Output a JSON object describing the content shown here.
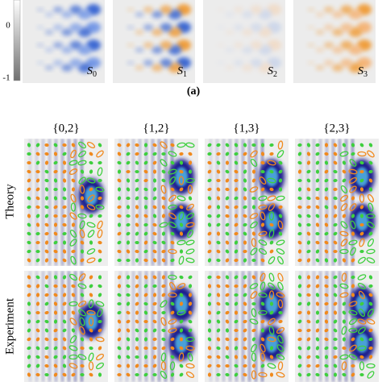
{
  "colorbar": {
    "ticks": [
      "0",
      "-1"
    ]
  },
  "stokes_panels": [
    {
      "symbol": "S",
      "index": "0"
    },
    {
      "symbol": "S",
      "index": "1"
    },
    {
      "symbol": "S",
      "index": "2"
    },
    {
      "symbol": "S",
      "index": "3"
    }
  ],
  "panel_label": "(a)",
  "columns": [
    "{0,2}",
    "{1,2}",
    "{1,3}",
    "{2,3}"
  ],
  "rows": [
    "Theory",
    "Experiment"
  ]
}
